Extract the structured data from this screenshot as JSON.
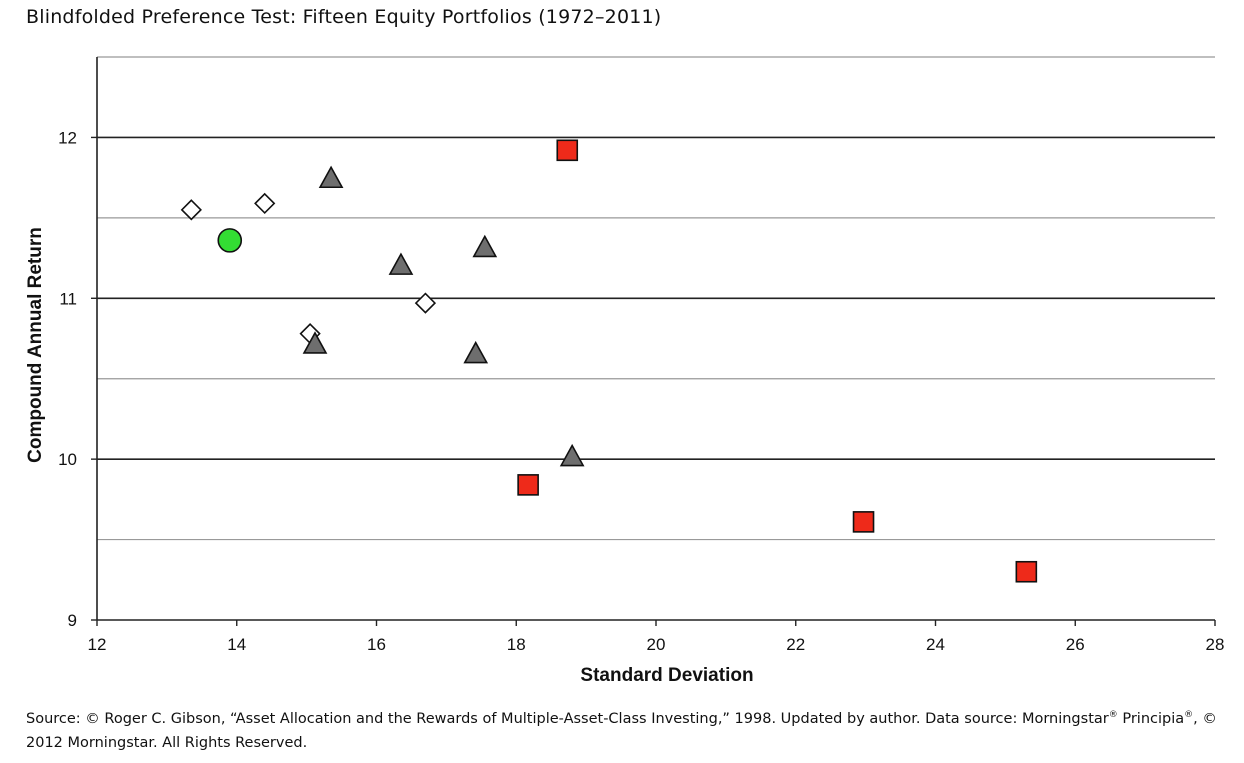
{
  "title": "Blindfolded Preference Test: Fifteen Equity Portfolios (1972–2011)",
  "source": {
    "part1": "Source: © Roger C. Gibson, “Asset Allocation and the Rewards of Multiple-Asset-Class Investing,” 1998. Updated by author. Data source: Morningstar",
    "part2": "Principia",
    "part3": ", © 2012 Morningstar. All Rights Reserved.",
    "reg": "®"
  },
  "chart_data": {
    "type": "scatter",
    "title": "Blindfolded Preference Test: Fifteen Equity Portfolios (1972–2011)",
    "xlabel": "Standard Deviation",
    "ylabel": "Compound Annual Return",
    "xlim": [
      12,
      28
    ],
    "ylim": [
      9,
      12.5
    ],
    "xticks": [
      12,
      14,
      16,
      18,
      20,
      22,
      24,
      26,
      28
    ],
    "yticks": [
      9,
      10,
      11,
      12
    ],
    "grid": "horizontal",
    "legend": "none",
    "series": [
      {
        "marker": "diamond",
        "color": "#ffffff",
        "points": [
          [
            13.35,
            11.55
          ],
          [
            14.4,
            11.59
          ],
          [
            15.05,
            10.78
          ],
          [
            16.7,
            10.97
          ]
        ]
      },
      {
        "marker": "circle",
        "color": "#33dd33",
        "points": [
          [
            13.9,
            11.36
          ]
        ]
      },
      {
        "marker": "triangle",
        "color": "#6e6e6e",
        "points": [
          [
            15.35,
            11.74
          ],
          [
            16.35,
            11.2
          ],
          [
            17.55,
            11.31
          ],
          [
            15.12,
            10.71
          ],
          [
            17.42,
            10.65
          ],
          [
            18.8,
            10.01
          ]
        ]
      },
      {
        "marker": "square",
        "color": "#ee2a1a",
        "points": [
          [
            18.73,
            11.92
          ],
          [
            18.17,
            9.84
          ],
          [
            22.97,
            9.61
          ],
          [
            25.3,
            9.3
          ]
        ]
      }
    ]
  }
}
